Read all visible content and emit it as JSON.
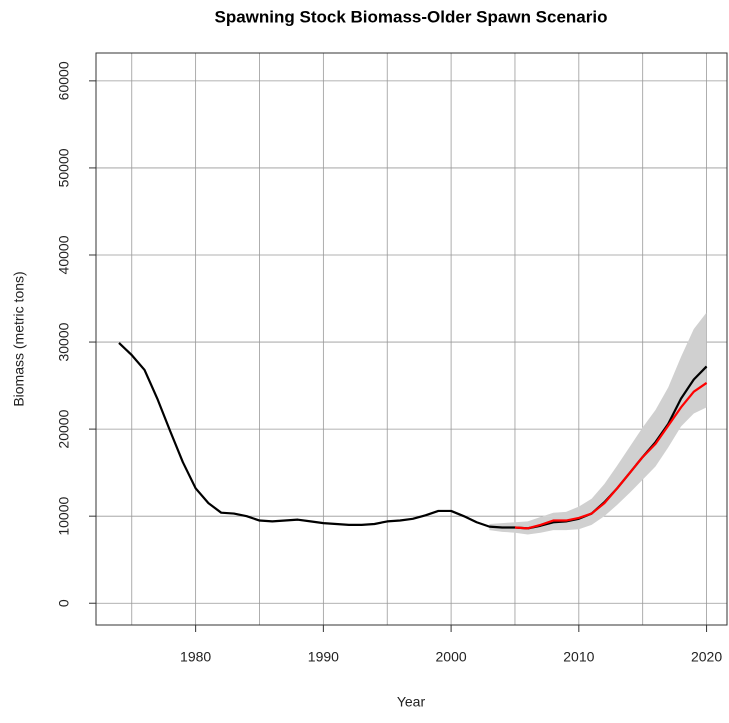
{
  "chart_data": {
    "type": "line",
    "title": "Spawning Stock Biomass-Older Spawn Scenario",
    "x_label": "Year",
    "y_label": "Biomass (metric tons)",
    "xlim": [
      1972.2,
      2021.6
    ],
    "ylim": [
      -2500,
      63200
    ],
    "xticks": [
      1980,
      1990,
      2000,
      2010,
      2020
    ],
    "yticks": [
      0,
      10000,
      20000,
      30000,
      40000,
      50000,
      60000
    ],
    "x_grid": [
      1975,
      1980,
      1985,
      1990,
      1995,
      2000,
      2005,
      2010,
      2015,
      2020
    ],
    "grid": true,
    "band": {
      "color": "#d0d0d0",
      "x": [
        2003,
        2004,
        2005,
        2006,
        2007,
        2008,
        2009,
        2010,
        2011,
        2012,
        2013,
        2014,
        2015,
        2016,
        2017,
        2018,
        2019,
        2020
      ],
      "upper": [
        9100,
        9200,
        9300,
        9400,
        9900,
        10400,
        10500,
        11100,
        12000,
        13700,
        15800,
        18000,
        20200,
        22200,
        24800,
        28300,
        31500,
        33400
      ],
      "lower": [
        8400,
        8200,
        8100,
        7900,
        8100,
        8400,
        8400,
        8500,
        9000,
        10000,
        11300,
        12700,
        14200,
        15700,
        17900,
        20300,
        21800,
        22500
      ]
    },
    "series": [
      {
        "color": "#000000",
        "x": [
          1974,
          1975,
          1976,
          1977,
          1978,
          1979,
          1980,
          1981,
          1982,
          1983,
          1984,
          1985,
          1986,
          1987,
          1988,
          1989,
          1990,
          1991,
          1992,
          1993,
          1994,
          1995,
          1996,
          1997,
          1998,
          1999,
          2000,
          2001,
          2002,
          2003,
          2004,
          2005,
          2006,
          2007,
          2008,
          2009,
          2010,
          2011,
          2012,
          2013,
          2014,
          2015,
          2016,
          2017,
          2018,
          2019,
          2020
        ],
        "values": [
          29900,
          28500,
          26800,
          23500,
          19800,
          16200,
          13200,
          11500,
          10400,
          10300,
          10000,
          9500,
          9400,
          9500,
          9600,
          9400,
          9200,
          9100,
          9000,
          9000,
          9100,
          9400,
          9500,
          9700,
          10100,
          10600,
          10600,
          10000,
          9300,
          8800,
          8700,
          8700,
          8600,
          8900,
          9300,
          9400,
          9700,
          10300,
          11600,
          13200,
          15000,
          16800,
          18500,
          20600,
          23500,
          25700,
          27200
        ]
      },
      {
        "color": "#ff0000",
        "x": [
          2005,
          2006,
          2007,
          2008,
          2009,
          2010,
          2011,
          2012,
          2013,
          2014,
          2015,
          2016,
          2017,
          2018,
          2019,
          2020
        ],
        "values": [
          8700,
          8600,
          9000,
          9500,
          9500,
          9800,
          10300,
          11500,
          13200,
          15000,
          16800,
          18300,
          20400,
          22500,
          24300,
          25300
        ]
      }
    ]
  }
}
